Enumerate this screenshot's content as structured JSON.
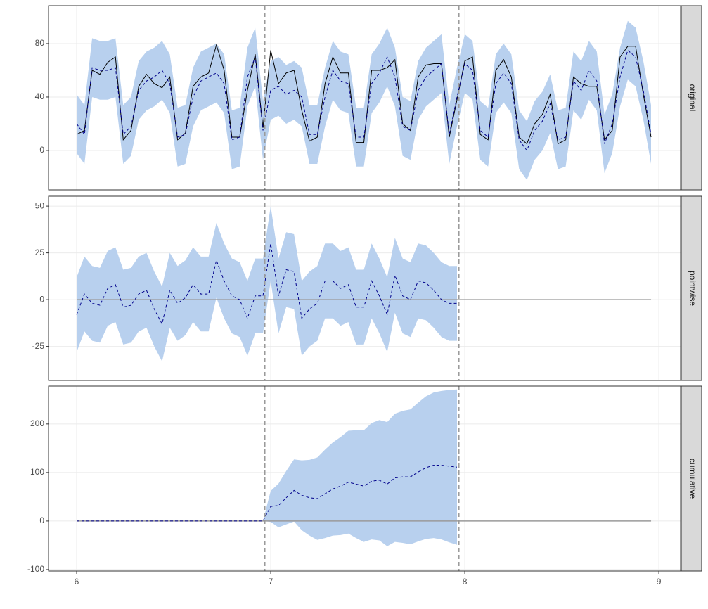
{
  "chart_data": [
    {
      "type": "line",
      "strip": "original",
      "x": [
        6,
        6.04,
        6.08,
        6.12,
        6.16,
        6.2,
        6.24,
        6.28,
        6.32,
        6.36,
        6.4,
        6.44,
        6.48,
        6.52,
        6.56,
        6.6,
        6.64,
        6.68,
        6.72,
        6.76,
        6.8,
        6.84,
        6.88,
        6.92,
        6.96,
        7,
        7.04,
        7.08,
        7.12,
        7.16,
        7.2,
        7.24,
        7.28,
        7.32,
        7.36,
        7.4,
        7.44,
        7.48,
        7.52,
        7.56,
        7.6,
        7.64,
        7.68,
        7.72,
        7.76,
        7.8,
        7.84,
        7.88,
        7.92,
        7.96,
        8,
        8.04,
        8.08,
        8.12,
        8.16,
        8.2,
        8.24,
        8.28,
        8.32,
        8.36,
        8.4,
        8.44,
        8.48,
        8.52,
        8.56,
        8.6,
        8.64,
        8.68,
        8.72,
        8.76,
        8.8,
        8.84,
        8.88,
        8.92,
        8.96
      ],
      "observed": [
        12,
        15,
        60,
        57,
        66,
        70,
        8,
        15,
        48,
        57,
        50,
        47,
        55,
        8,
        13,
        48,
        55,
        58,
        79,
        60,
        10,
        10,
        45,
        72,
        17,
        75,
        50,
        58,
        60,
        30,
        7,
        10,
        50,
        70,
        58,
        58,
        6,
        6,
        60,
        60,
        62,
        68,
        20,
        15,
        55,
        64,
        65,
        65,
        10,
        38,
        67,
        70,
        12,
        8,
        60,
        68,
        55,
        10,
        5,
        20,
        27,
        42,
        5,
        8,
        55,
        50,
        48,
        48,
        8,
        15,
        70,
        78,
        78,
        42,
        10
      ],
      "values": [
        20,
        12,
        62,
        60,
        60,
        62,
        12,
        18,
        45,
        52,
        55,
        60,
        50,
        10,
        12,
        40,
        52,
        55,
        58,
        50,
        8,
        10,
        55,
        70,
        15,
        45,
        48,
        42,
        45,
        40,
        12,
        12,
        40,
        60,
        52,
        50,
        10,
        10,
        50,
        58,
        70,
        55,
        18,
        15,
        45,
        55,
        60,
        65,
        12,
        40,
        65,
        60,
        15,
        10,
        50,
        58,
        50,
        8,
        0,
        15,
        22,
        35,
        8,
        10,
        52,
        45,
        60,
        52,
        5,
        20,
        55,
        75,
        70,
        45,
        12
      ],
      "lower": [
        -2,
        -10,
        40,
        38,
        38,
        40,
        -10,
        -4,
        23,
        30,
        33,
        38,
        28,
        -12,
        -10,
        18,
        30,
        33,
        36,
        28,
        -14,
        -12,
        33,
        48,
        -7,
        23,
        26,
        20,
        23,
        18,
        -10,
        -10,
        18,
        38,
        30,
        28,
        -12,
        -12,
        28,
        36,
        48,
        33,
        -4,
        -7,
        23,
        33,
        38,
        43,
        -10,
        18,
        43,
        38,
        -7,
        -12,
        28,
        36,
        28,
        -14,
        -22,
        -7,
        0,
        13,
        -14,
        -12,
        30,
        23,
        38,
        30,
        -17,
        -2,
        33,
        53,
        48,
        23,
        -10
      ],
      "upper": [
        42,
        34,
        84,
        82,
        82,
        84,
        34,
        40,
        67,
        74,
        77,
        82,
        72,
        32,
        34,
        62,
        74,
        77,
        80,
        72,
        30,
        32,
        77,
        92,
        37,
        67,
        70,
        64,
        67,
        62,
        34,
        34,
        62,
        82,
        74,
        72,
        32,
        32,
        72,
        80,
        92,
        77,
        40,
        37,
        67,
        77,
        82,
        87,
        34,
        62,
        87,
        82,
        37,
        32,
        72,
        80,
        72,
        30,
        22,
        37,
        44,
        57,
        30,
        32,
        74,
        67,
        82,
        74,
        27,
        42,
        77,
        97,
        92,
        67,
        34
      ],
      "band_color": "#b8d0ee",
      "line_color": "#00008b",
      "observed_color": "#000000",
      "vlines": [
        6.97,
        7.97
      ],
      "xlim": [
        5.855,
        9.112
      ],
      "xticks": [
        6,
        7,
        8,
        9
      ],
      "ylim": [
        -29.5,
        108.4
      ],
      "yticks": [
        0,
        40,
        80
      ],
      "grid": true
    },
    {
      "type": "line",
      "strip": "pointwise",
      "x": [
        6,
        6.04,
        6.08,
        6.12,
        6.16,
        6.2,
        6.24,
        6.28,
        6.32,
        6.36,
        6.4,
        6.44,
        6.48,
        6.52,
        6.56,
        6.6,
        6.64,
        6.68,
        6.72,
        6.76,
        6.8,
        6.84,
        6.88,
        6.92,
        6.96,
        7,
        7.04,
        7.08,
        7.12,
        7.16,
        7.2,
        7.24,
        7.28,
        7.32,
        7.36,
        7.4,
        7.44,
        7.48,
        7.52,
        7.56,
        7.6,
        7.64,
        7.68,
        7.72,
        7.76,
        7.8,
        7.84,
        7.88,
        7.92,
        7.96
      ],
      "values": [
        -8,
        3,
        -2,
        -3,
        6,
        8,
        -4,
        -3,
        3,
        5,
        -5,
        -13,
        5,
        -2,
        1,
        8,
        3,
        3,
        21,
        10,
        2,
        0,
        -10,
        2,
        2,
        30,
        2,
        16,
        15,
        -10,
        -5,
        -2,
        10,
        10,
        6,
        8,
        -4,
        -4,
        10,
        2,
        -8,
        13,
        2,
        0,
        10,
        9,
        5,
        0,
        -2,
        -2
      ],
      "lower": [
        -28,
        -17,
        -22,
        -23,
        -14,
        -12,
        -24,
        -23,
        -17,
        -15,
        -25,
        -33,
        -15,
        -22,
        -19,
        -12,
        -17,
        -17,
        1,
        -10,
        -18,
        -20,
        -30,
        -18,
        -18,
        10,
        -18,
        -4,
        -5,
        -30,
        -25,
        -22,
        -10,
        -10,
        -14,
        -12,
        -24,
        -24,
        -10,
        -18,
        -28,
        -7,
        -18,
        -20,
        -10,
        -11,
        -15,
        -20,
        -22,
        -22
      ],
      "upper": [
        12,
        23,
        18,
        17,
        26,
        28,
        16,
        17,
        23,
        25,
        15,
        7,
        25,
        18,
        21,
        28,
        23,
        23,
        41,
        30,
        22,
        20,
        10,
        22,
        22,
        50,
        22,
        36,
        35,
        10,
        15,
        18,
        30,
        30,
        26,
        28,
        16,
        16,
        30,
        22,
        12,
        33,
        22,
        20,
        30,
        29,
        25,
        20,
        18,
        18
      ],
      "band_color": "#b8d0ee",
      "line_color": "#00008b",
      "hline": {
        "y": 0,
        "x": [
          6,
          8.96
        ],
        "color": "#9a9a9a"
      },
      "vlines": [
        6.97,
        7.97
      ],
      "xlim": [
        5.855,
        9.112
      ],
      "xticks": [
        6,
        7,
        8,
        9
      ],
      "ylim": [
        -43.2,
        55.3
      ],
      "yticks": [
        -25,
        0,
        25,
        50
      ],
      "grid": true
    },
    {
      "type": "line",
      "strip": "cumulative",
      "x": [
        6,
        6.04,
        6.08,
        6.12,
        6.16,
        6.2,
        6.24,
        6.28,
        6.32,
        6.36,
        6.4,
        6.44,
        6.48,
        6.52,
        6.56,
        6.6,
        6.64,
        6.68,
        6.72,
        6.76,
        6.8,
        6.84,
        6.88,
        6.92,
        6.96,
        7,
        7.04,
        7.08,
        7.12,
        7.16,
        7.2,
        7.24,
        7.28,
        7.32,
        7.36,
        7.4,
        7.44,
        7.48,
        7.52,
        7.56,
        7.6,
        7.64,
        7.68,
        7.72,
        7.76,
        7.8,
        7.84,
        7.88,
        7.92,
        7.96
      ],
      "values": [
        0,
        0,
        0,
        0,
        0,
        0,
        0,
        0,
        0,
        0,
        0,
        0,
        0,
        0,
        0,
        0,
        0,
        0,
        0,
        0,
        0,
        0,
        0,
        0,
        0,
        30,
        32,
        48,
        63,
        53,
        48,
        46,
        56,
        66,
        72,
        80,
        76,
        72,
        82,
        84,
        76,
        89,
        91,
        91,
        101,
        110,
        115,
        115,
        113,
        111
      ],
      "lower": [
        0,
        0,
        0,
        0,
        0,
        0,
        0,
        0,
        0,
        0,
        0,
        0,
        0,
        0,
        0,
        0,
        0,
        0,
        0,
        0,
        0,
        0,
        0,
        0,
        0,
        -2,
        -13,
        -7,
        -1,
        -19,
        -30,
        -39,
        -35,
        -30,
        -29,
        -26,
        -35,
        -43,
        -38,
        -40,
        -52,
        -43,
        -45,
        -48,
        -42,
        -37,
        -35,
        -38,
        -44,
        -49
      ],
      "upper": [
        0,
        0,
        0,
        0,
        0,
        0,
        0,
        0,
        0,
        0,
        0,
        0,
        0,
        0,
        0,
        0,
        0,
        0,
        0,
        0,
        0,
        0,
        0,
        0,
        0,
        62,
        77,
        103,
        127,
        125,
        126,
        131,
        147,
        162,
        173,
        186,
        187,
        187,
        202,
        208,
        204,
        221,
        227,
        230,
        244,
        257,
        265,
        268,
        270,
        271
      ],
      "band_color": "#b8d0ee",
      "line_color": "#00008b",
      "hline": {
        "y": 0,
        "x": [
          6,
          8.96
        ],
        "color": "#9a9a9a"
      },
      "vlines": [
        6.97,
        7.97
      ],
      "xlim": [
        5.855,
        9.112
      ],
      "xticks": [
        6,
        7,
        8,
        9
      ],
      "ylim": [
        -103,
        278
      ],
      "yticks": [
        -100,
        0,
        100,
        200
      ],
      "grid": true
    }
  ]
}
